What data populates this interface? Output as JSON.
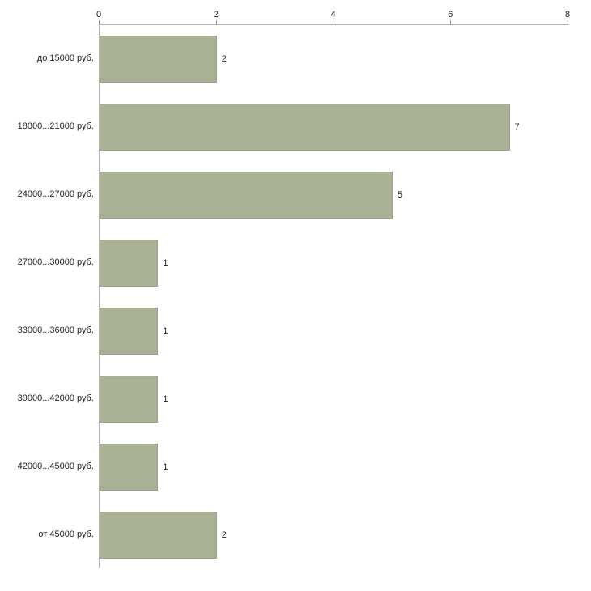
{
  "chart_data": {
    "type": "bar",
    "orientation": "horizontal",
    "title": "",
    "xlabel": "",
    "ylabel": "",
    "categories": [
      "до 15000 руб.",
      "18000...21000 руб.",
      "24000...27000 руб.",
      "27000...30000 руб.",
      "33000...36000 руб.",
      "39000...42000 руб.",
      "42000...45000 руб.",
      "от 45000 руб."
    ],
    "values": [
      2,
      7,
      5,
      1,
      1,
      1,
      1,
      2
    ],
    "value_labels": [
      "2",
      "7",
      "5",
      "1",
      "1",
      "1",
      "1",
      "2"
    ],
    "xlim": [
      0,
      8
    ],
    "xticks": [
      0,
      2,
      4,
      6,
      8
    ],
    "xtick_labels": [
      "0",
      "2",
      "4",
      "6",
      "8"
    ],
    "ticks_position": "top",
    "grid": false,
    "legend": "none",
    "bar_color": "#a9b294",
    "bar_border_color": "#99a287",
    "axis_color": "#b3b3b3",
    "background_color": "#ffffff"
  }
}
